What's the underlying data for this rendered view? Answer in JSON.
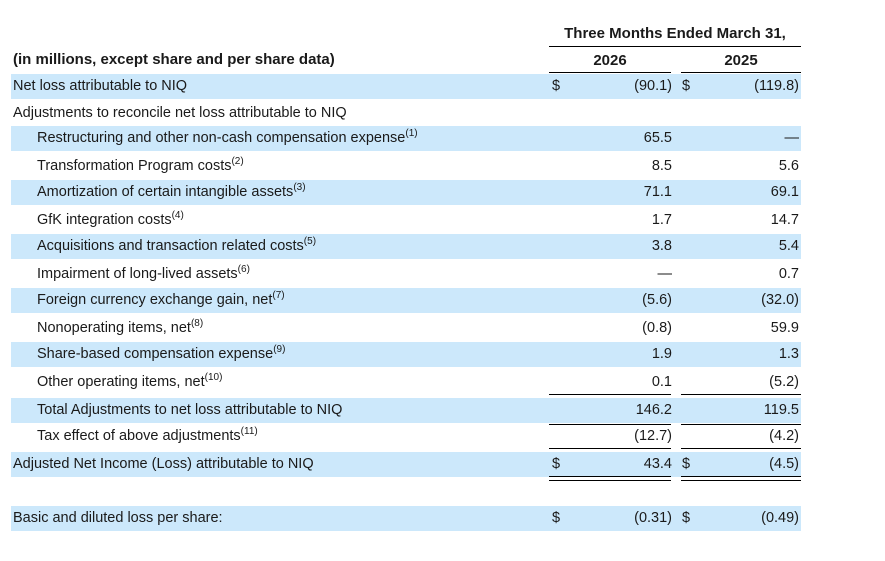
{
  "header": {
    "period": "Three Months Ended March 31,",
    "year1": "2026",
    "year2": "2025",
    "unit_label": "(in millions, except share and per share data)"
  },
  "rows": [
    {
      "label": "Net loss attributable to NIQ",
      "note": "",
      "dollar1": "$",
      "v1": "(90.1)",
      "dollar2": "$",
      "v2": "(119.8)"
    },
    {
      "label": "Adjustments to reconcile net loss attributable to NIQ",
      "note": "",
      "dollar1": "",
      "v1": "",
      "dollar2": "",
      "v2": ""
    },
    {
      "label": "Restructuring and other non-cash compensation expense",
      "note": "(1)",
      "dollar1": "",
      "v1": "65.5",
      "dollar2": "",
      "v2": "—"
    },
    {
      "label": "Transformation Program costs",
      "note": "(2)",
      "dollar1": "",
      "v1": "8.5",
      "dollar2": "",
      "v2": "5.6"
    },
    {
      "label": "Amortization of certain intangible assets",
      "note": "(3)",
      "dollar1": "",
      "v1": "71.1",
      "dollar2": "",
      "v2": "69.1"
    },
    {
      "label": "GfK integration costs",
      "note": "(4)",
      "dollar1": "",
      "v1": "1.7",
      "dollar2": "",
      "v2": "14.7"
    },
    {
      "label": "Acquisitions and transaction related costs",
      "note": "(5)",
      "dollar1": "",
      "v1": "3.8",
      "dollar2": "",
      "v2": "5.4"
    },
    {
      "label": "Impairment of long-lived assets",
      "note": "(6)",
      "dollar1": "",
      "v1": "—",
      "dollar2": "",
      "v2": "0.7"
    },
    {
      "label": "Foreign currency exchange gain, net",
      "note": "(7)",
      "dollar1": "",
      "v1": "(5.6)",
      "dollar2": "",
      "v2": "(32.0)"
    },
    {
      "label": "Nonoperating items, net",
      "note": "(8)",
      "dollar1": "",
      "v1": "(0.8)",
      "dollar2": "",
      "v2": "59.9"
    },
    {
      "label": "Share-based compensation expense",
      "note": "(9)",
      "dollar1": "",
      "v1": "1.9",
      "dollar2": "",
      "v2": "1.3"
    },
    {
      "label": "Other operating items, net",
      "note": "(10)",
      "dollar1": "",
      "v1": "0.1",
      "dollar2": "",
      "v2": "(5.2)"
    },
    {
      "label": "Total Adjustments to net loss attributable to NIQ",
      "note": "",
      "dollar1": "",
      "v1": "146.2",
      "dollar2": "",
      "v2": "119.5"
    },
    {
      "label": "Tax effect of above adjustments",
      "note": "(11)",
      "dollar1": "",
      "v1": "(12.7)",
      "dollar2": "",
      "v2": "(4.2)"
    },
    {
      "label": "Adjusted Net Income (Loss) attributable to NIQ",
      "note": "",
      "dollar1": "$",
      "v1": "43.4",
      "dollar2": "$",
      "v2": "(4.5)"
    },
    {
      "label": "Basic and diluted loss per share:",
      "note": "",
      "dollar1": "$",
      "v1": "(0.31)",
      "dollar2": "$",
      "v2": "(0.49)"
    }
  ]
}
